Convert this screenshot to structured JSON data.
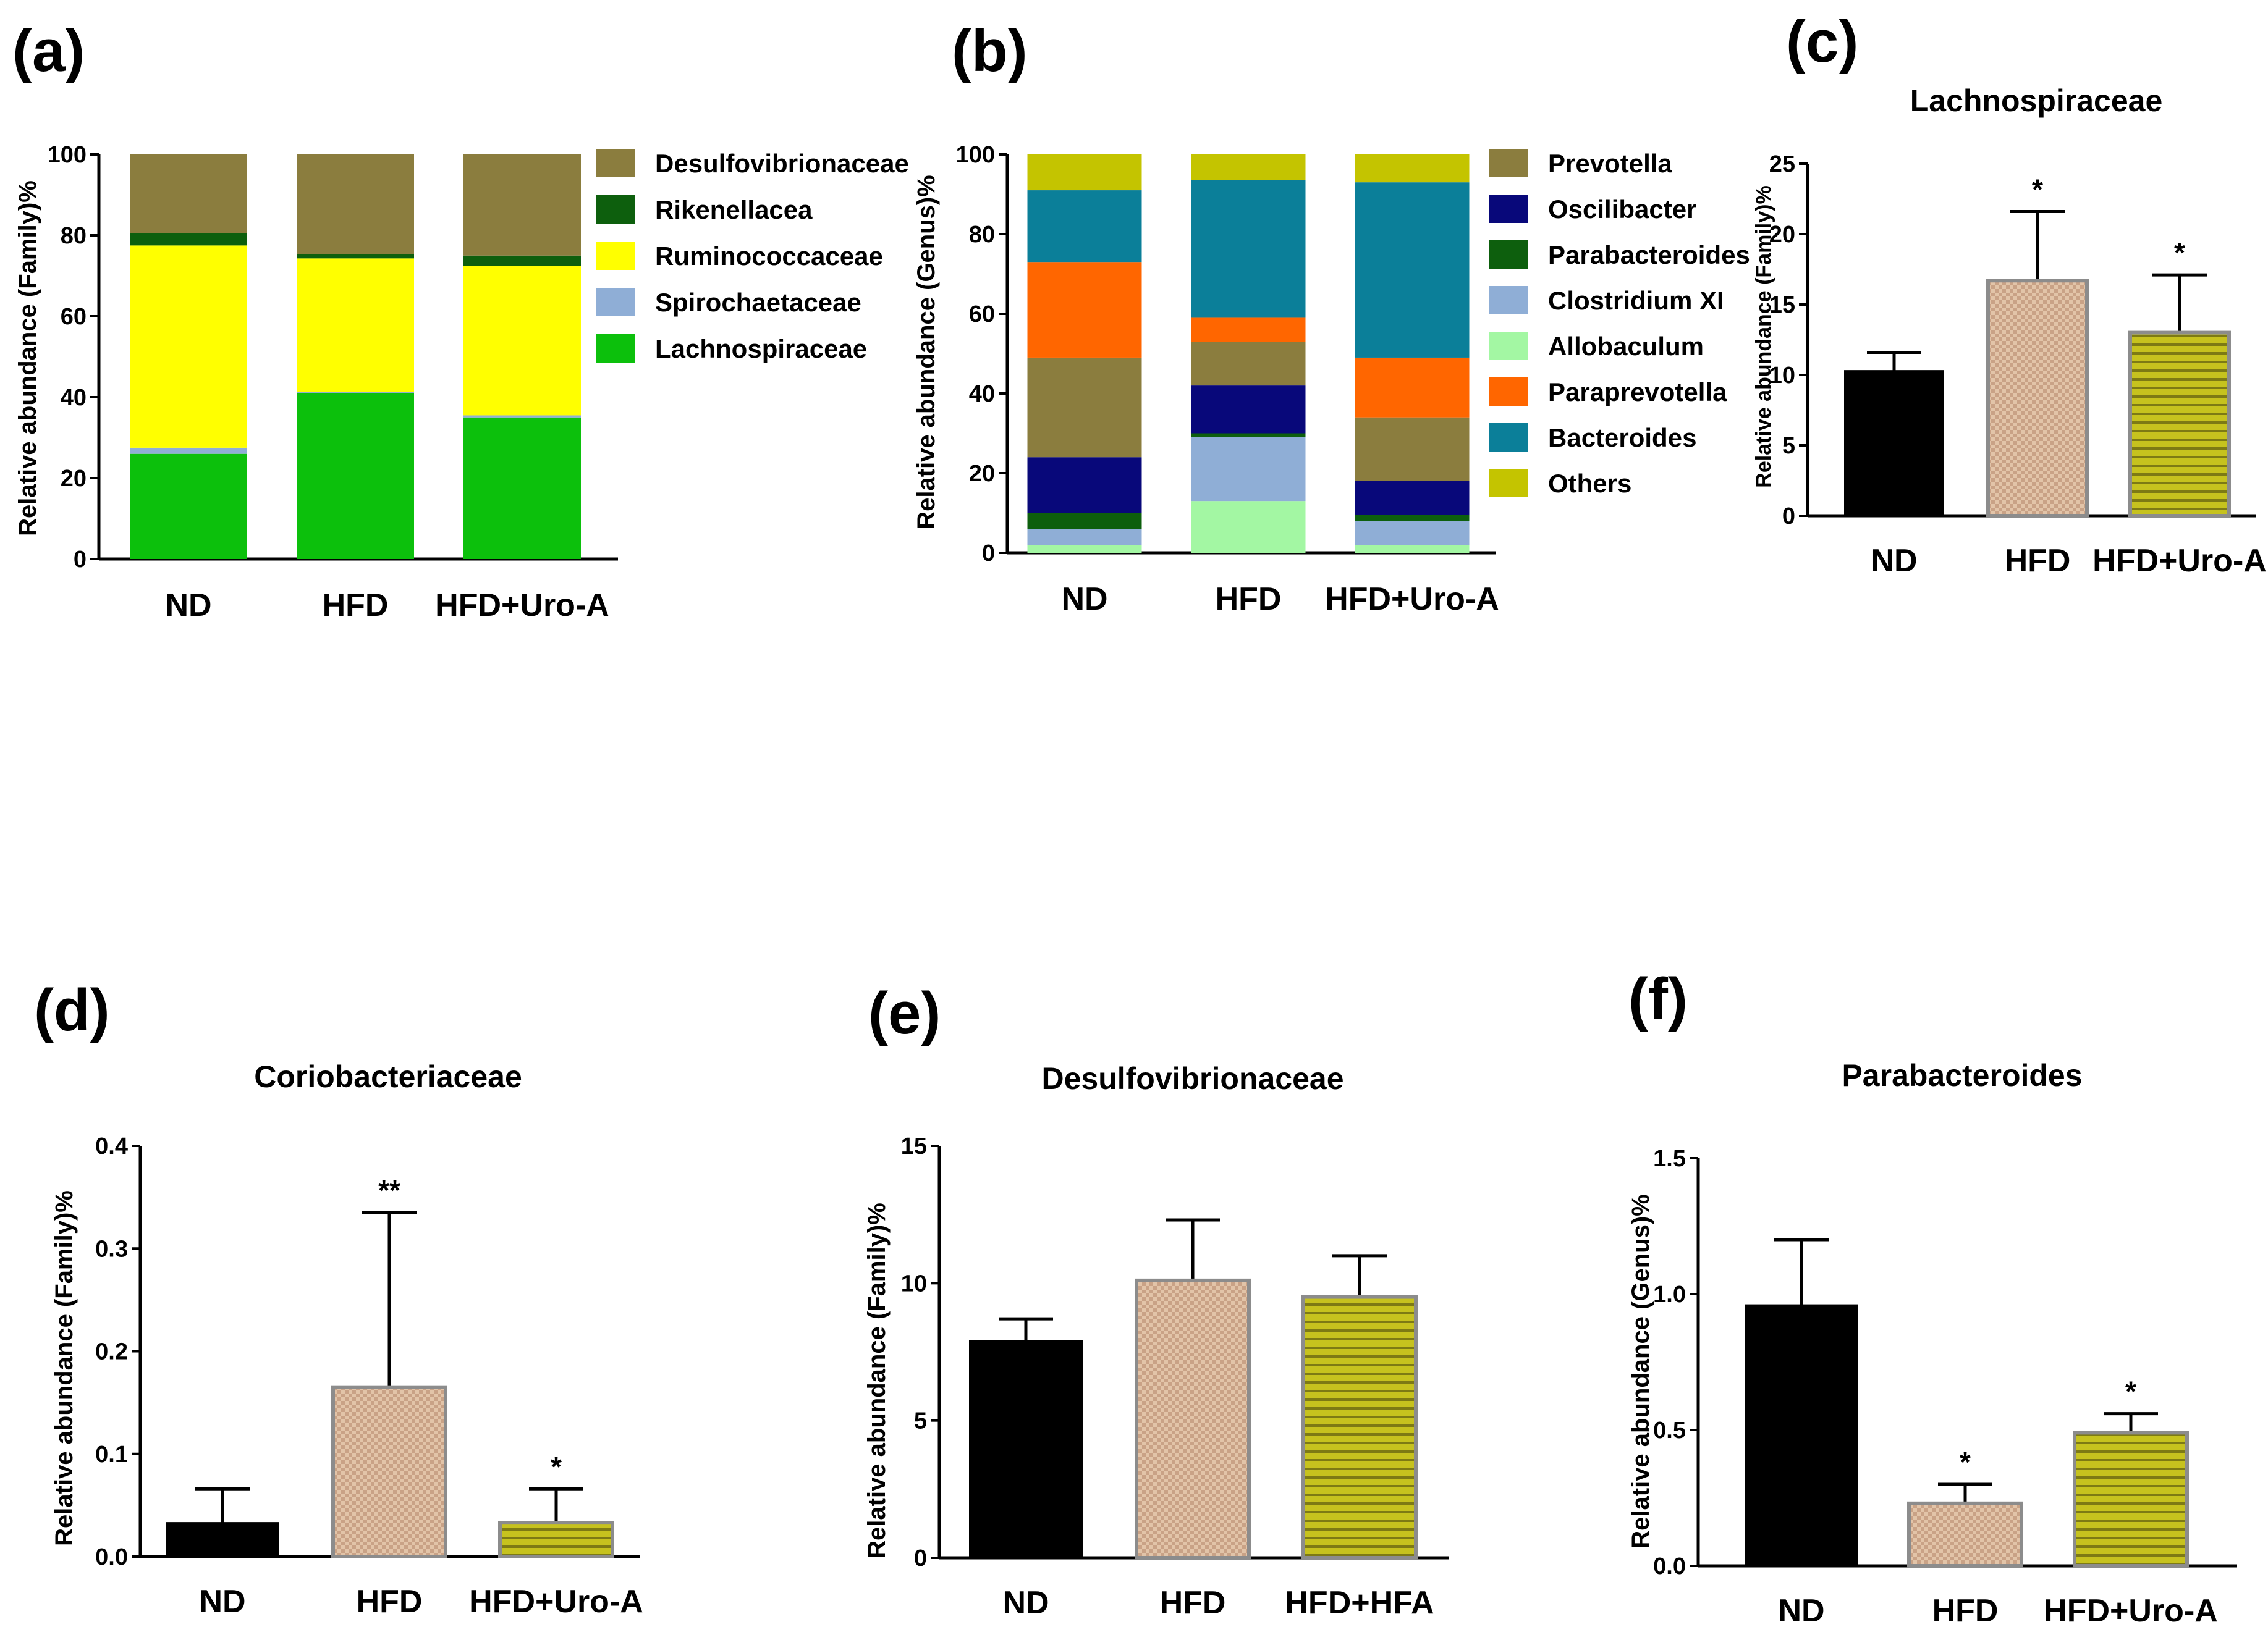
{
  "colors": {
    "Desulfovibrionaceae": "#8b7d3e",
    "Rikenellacea": "#0d5f0d",
    "Ruminococcaceae": "#ffff00",
    "Spirochaetaceae": "#8faed6",
    "Lachnospiraceae": "#0cc00c",
    "Prevotella": "#8b7d3e",
    "Oscilibacter": "#08087a",
    "Parabacteroides": "#0d5f0d",
    "Clostridium XI": "#8faed6",
    "Allobaculum": "#a3f7a3",
    "Paraprevotella": "#ff6600",
    "Bacteroides": "#0b7f99",
    "Others": "#c4c400"
  },
  "chart_data": [
    {
      "panel": "(a)",
      "type": "bar",
      "stacked": true,
      "title": "",
      "ylabel": "Relative abundance (Family)%",
      "ylim": [
        0,
        100
      ],
      "yticks": [
        "0",
        "20",
        "40",
        "60",
        "80",
        "100"
      ],
      "categories": [
        "ND",
        "HFD",
        "HFD+Uro-A"
      ],
      "legend": [
        "Desulfovibrionaceae",
        "Rikenellacea",
        "Ruminococcaceae",
        "Spirochaetaceae",
        "Lachnospiraceae"
      ],
      "legend_position": "right",
      "series": [
        {
          "name": "Lachnospiraceae",
          "values": [
            26,
            41,
            35
          ]
        },
        {
          "name": "Spirochaetaceae",
          "values": [
            1.5,
            0.3,
            0.5
          ]
        },
        {
          "name": "Ruminococcaceae",
          "values": [
            50,
            33,
            37
          ]
        },
        {
          "name": "Rikenellacea",
          "values": [
            3,
            1,
            2.5
          ]
        },
        {
          "name": "Desulfovibrionaceae",
          "values": [
            19.5,
            24.7,
            25
          ]
        }
      ]
    },
    {
      "panel": "(b)",
      "type": "bar",
      "stacked": true,
      "title": "",
      "ylabel": "Relative abundance (Genus)%",
      "ylim": [
        0,
        100
      ],
      "yticks": [
        "0",
        "20",
        "40",
        "60",
        "80",
        "100"
      ],
      "categories": [
        "ND",
        "HFD",
        "HFD+Uro-A"
      ],
      "legend": [
        "Prevotella",
        "Oscilibacter",
        "Parabacteroides",
        "Clostridium XI",
        "Allobaculum",
        "Paraprevotella",
        "Bacteroides",
        "Others"
      ],
      "legend_position": "right",
      "series": [
        {
          "name": "Allobaculum",
          "values": [
            2,
            13,
            2
          ]
        },
        {
          "name": "Clostridium XI",
          "values": [
            4,
            16,
            6
          ]
        },
        {
          "name": "Parabacteroides",
          "values": [
            4,
            1,
            1.5
          ]
        },
        {
          "name": "Oscilibacter",
          "values": [
            14,
            12,
            8.5
          ]
        },
        {
          "name": "Prevotella",
          "values": [
            25,
            11,
            16
          ]
        },
        {
          "name": "Paraprevotella",
          "values": [
            24,
            6,
            15
          ]
        },
        {
          "name": "Bacteroides",
          "values": [
            18,
            34.5,
            44
          ]
        },
        {
          "name": "Others",
          "values": [
            9,
            6.5,
            7
          ]
        }
      ]
    },
    {
      "panel": "(c)",
      "type": "bar",
      "title": "Lachnospiraceae",
      "ylabel": "Relative abundance (Family)%",
      "ylim": [
        0,
        25
      ],
      "yticks": [
        "0",
        "5",
        "10",
        "15",
        "20",
        "25"
      ],
      "categories": [
        "ND",
        "HFD",
        "HFD+Uro-A"
      ],
      "values": [
        10.3,
        16.7,
        13
      ],
      "errors": [
        1.3,
        4.9,
        4.1
      ],
      "significance": [
        "",
        "*",
        "*"
      ]
    },
    {
      "panel": "(d)",
      "type": "bar",
      "title": "Coriobacteriaceae",
      "ylabel": "Relative abundance (Family)%",
      "ylim": [
        0,
        0.4
      ],
      "yticks": [
        "0.0",
        "0.1",
        "0.2",
        "0.3",
        "0.4"
      ],
      "categories": [
        "ND",
        "HFD",
        "HFD+Uro-A"
      ],
      "values": [
        0.033,
        0.165,
        0.033
      ],
      "errors": [
        0.033,
        0.17,
        0.033
      ],
      "significance": [
        "",
        "**",
        "*"
      ]
    },
    {
      "panel": "(e)",
      "type": "bar",
      "title": "Desulfovibrionaceae",
      "ylabel": "Relative abundance (Family)%",
      "ylim": [
        0,
        15
      ],
      "yticks": [
        "0",
        "5",
        "10",
        "15"
      ],
      "categories": [
        "ND",
        "HFD",
        "HFD+HFA"
      ],
      "values": [
        7.9,
        10.1,
        9.5
      ],
      "errors": [
        0.8,
        2.2,
        1.5
      ],
      "significance": [
        "",
        "",
        ""
      ]
    },
    {
      "panel": "(f)",
      "type": "bar",
      "title": "Parabacteroides",
      "ylabel": "Relative abundance (Genus)%",
      "ylim": [
        0,
        1.5
      ],
      "yticks": [
        "0.0",
        "0.5",
        "1.0",
        "1.5"
      ],
      "categories": [
        "ND",
        "HFD",
        "HFD+Uro-A"
      ],
      "values": [
        0.96,
        0.23,
        0.49
      ],
      "errors": [
        0.24,
        0.07,
        0.07
      ],
      "significance": [
        "",
        "*",
        "*"
      ]
    }
  ]
}
